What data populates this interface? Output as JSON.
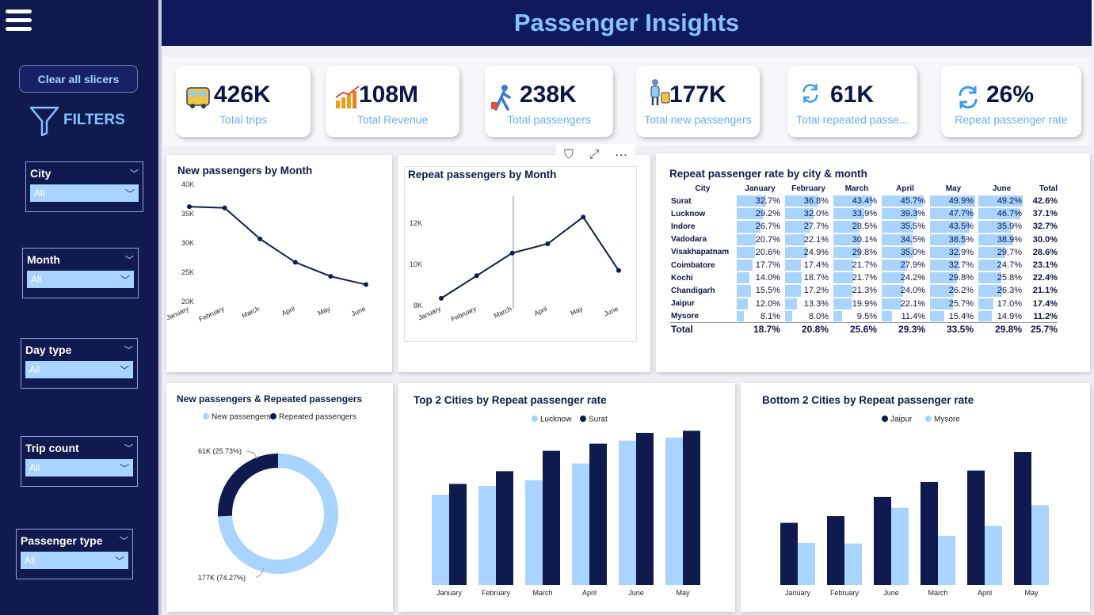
{
  "header": {
    "title": "Passenger Insights"
  },
  "sidebar": {
    "clear_label": "Clear all slicers",
    "filters_label": "FILTERS",
    "slicers": [
      {
        "title": "City",
        "value": "All"
      },
      {
        "title": "Month",
        "value": "All"
      },
      {
        "title": "Day type",
        "value": "All"
      },
      {
        "title": "Trip count",
        "value": "All"
      },
      {
        "title": "Passenger type",
        "value": "All"
      }
    ]
  },
  "kpis": [
    {
      "value": "426K",
      "label": "Total trips",
      "icon": "bus-icon"
    },
    {
      "value": "108M",
      "label": "Total Revenue",
      "icon": "revenue-chart-icon"
    },
    {
      "value": "238K",
      "label": "Total passengers",
      "icon": "traveler-icon"
    },
    {
      "value": "177K",
      "label": "Total new passengers",
      "icon": "passenger-luggage-icon"
    },
    {
      "value": "61K",
      "label": "Total repeated passe...",
      "icon": "repeat-icon"
    },
    {
      "value": "26%",
      "label": "Repeat passenger rate",
      "icon": "repeat-icon"
    }
  ],
  "colors": {
    "navy": "#0f1a4f",
    "light_blue": "#a8d4ff",
    "accent": "#86c2ff"
  },
  "chart_data": [
    {
      "type": "line",
      "title": "New passengers by Month",
      "categories": [
        "January",
        "February",
        "March",
        "April",
        "May",
        "June"
      ],
      "values": [
        36200,
        36000,
        30700,
        26700,
        24300,
        22900
      ],
      "ylim": [
        20000,
        40000
      ],
      "yticks": [
        "20K",
        "25K",
        "30K",
        "35K",
        "40K"
      ]
    },
    {
      "type": "line",
      "title": "Repeat passengers by Month",
      "categories": [
        "January",
        "February",
        "March",
        "April",
        "May",
        "June"
      ],
      "values": [
        8350,
        9450,
        10550,
        11000,
        12300,
        9700
      ],
      "ylim": [
        8000,
        13000
      ],
      "yticks": [
        "8K",
        "10K",
        "12K"
      ]
    },
    {
      "type": "table",
      "title": "Repeat passenger rate by city & month",
      "columns": [
        "City",
        "January",
        "February",
        "March",
        "April",
        "May",
        "June",
        "Total"
      ],
      "rows": [
        {
          "city": "Surat",
          "values": [
            32.7,
            36.8,
            43.4,
            45.7,
            49.9,
            49.2
          ],
          "total": "42.6%"
        },
        {
          "city": "Lucknow",
          "values": [
            29.2,
            32.0,
            33.9,
            39.3,
            47.7,
            46.7
          ],
          "total": "37.1%"
        },
        {
          "city": "Indore",
          "values": [
            26.7,
            27.7,
            28.5,
            35.5,
            43.5,
            35.9
          ],
          "total": "32.7%"
        },
        {
          "city": "Vadodara",
          "values": [
            20.7,
            22.1,
            30.1,
            34.5,
            38.5,
            38.9
          ],
          "total": "30.0%"
        },
        {
          "city": "Visakhapatnam",
          "values": [
            20.6,
            24.9,
            29.8,
            35.0,
            32.9,
            29.7
          ],
          "total": "28.6%"
        },
        {
          "city": "Coimbatore",
          "values": [
            17.7,
            17.4,
            21.7,
            27.9,
            32.7,
            24.7
          ],
          "total": "23.1%"
        },
        {
          "city": "Kochi",
          "values": [
            14.0,
            18.7,
            21.7,
            24.2,
            29.8,
            25.8
          ],
          "total": "22.4%"
        },
        {
          "city": "Chandigarh",
          "values": [
            15.5,
            17.2,
            21.3,
            24.0,
            26.2,
            26.3
          ],
          "total": "21.1%"
        },
        {
          "city": "Jaipur",
          "values": [
            12.0,
            13.3,
            19.9,
            22.1,
            25.7,
            17.0
          ],
          "total": "17.4%"
        },
        {
          "city": "Mysore",
          "values": [
            8.1,
            8.0,
            9.5,
            11.4,
            15.4,
            14.9
          ],
          "total": "11.2%"
        }
      ],
      "total_row": {
        "label": "Total",
        "values": [
          "18.7%",
          "20.8%",
          "25.6%",
          "29.3%",
          "33.5%",
          "29.8%"
        ],
        "total": "25.7%"
      }
    },
    {
      "type": "pie",
      "title": "New passengers & Repeated passengers",
      "legend": [
        "New passengers",
        "Repeated passengers"
      ],
      "values": [
        74.27,
        25.73
      ],
      "labels": [
        "177K (74.27%)",
        "61K (25.73%)"
      ]
    },
    {
      "type": "bar",
      "title": "Top 2 Cities by Repeat passenger rate",
      "categories": [
        "January",
        "February",
        "March",
        "April",
        "June",
        "May"
      ],
      "series": [
        {
          "name": "Lucknow",
          "values": [
            29.2,
            32.0,
            33.9,
            39.3,
            46.7,
            47.7
          ]
        },
        {
          "name": "Surat",
          "values": [
            32.7,
            36.8,
            43.4,
            45.7,
            49.2,
            49.9
          ]
        }
      ],
      "ylim": [
        0,
        52
      ]
    },
    {
      "type": "bar",
      "title": "Bottom 2 Cities by Repeat passenger rate",
      "categories": [
        "January",
        "February",
        "June",
        "March",
        "April",
        "May"
      ],
      "series": [
        {
          "name": "Jaipur",
          "values": [
            12.0,
            13.3,
            17.0,
            19.9,
            22.1,
            25.7
          ]
        },
        {
          "name": "Mysore",
          "values": [
            8.1,
            8.0,
            14.9,
            9.5,
            11.4,
            15.4
          ]
        }
      ],
      "ylim": [
        0,
        28
      ]
    }
  ]
}
